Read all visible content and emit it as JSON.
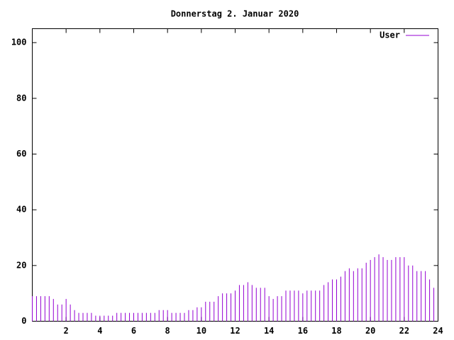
{
  "chart_data": {
    "type": "impulses",
    "title": "Donnerstag 2. Januar 2020",
    "series": [
      {
        "name": "User",
        "color": "#9400d3",
        "x": [
          0,
          0.25,
          0.5,
          0.75,
          1,
          1.25,
          1.5,
          1.75,
          2,
          2.25,
          2.5,
          2.75,
          3,
          3.25,
          3.5,
          3.75,
          4,
          4.25,
          4.5,
          4.75,
          5,
          5.25,
          5.5,
          5.75,
          6,
          6.25,
          6.5,
          6.75,
          7,
          7.25,
          7.5,
          7.75,
          8,
          8.25,
          8.5,
          8.75,
          9,
          9.25,
          9.5,
          9.75,
          10,
          10.25,
          10.5,
          10.75,
          11,
          11.25,
          11.5,
          11.75,
          12,
          12.25,
          12.5,
          12.75,
          13,
          13.25,
          13.5,
          13.75,
          14,
          14.25,
          14.5,
          14.75,
          15,
          15.25,
          15.5,
          15.75,
          16,
          16.25,
          16.5,
          16.75,
          17,
          17.25,
          17.5,
          17.75,
          18,
          18.25,
          18.5,
          18.75,
          19,
          19.25,
          19.5,
          19.75,
          20,
          20.25,
          20.5,
          20.75,
          21,
          21.25,
          21.5,
          21.75,
          22,
          22.25,
          22.5,
          22.75,
          23,
          23.25,
          23.5,
          23.75
        ],
        "values": [
          9,
          9,
          9,
          9,
          9,
          8,
          6,
          6,
          8,
          6,
          4,
          3,
          3,
          3,
          3,
          2,
          2,
          2,
          2,
          2,
          3,
          3,
          3,
          3,
          3,
          3,
          3,
          3,
          3,
          3,
          4,
          4,
          4,
          3,
          3,
          3,
          3,
          4,
          4,
          5,
          5,
          7,
          7,
          7,
          9,
          10,
          10,
          10,
          11,
          13,
          13,
          14,
          13,
          12,
          12,
          12,
          9,
          8,
          9,
          9,
          11,
          11,
          11,
          11,
          10,
          11,
          11,
          11,
          11,
          13,
          14,
          15,
          15,
          16,
          18,
          19,
          18,
          19,
          19,
          21,
          22,
          23,
          24,
          23,
          22,
          22,
          23,
          23,
          23,
          20,
          20,
          18,
          18,
          18,
          15,
          12
        ]
      }
    ],
    "xlim": [
      0,
      24
    ],
    "xticks": [
      2,
      4,
      6,
      8,
      10,
      12,
      14,
      16,
      18,
      20,
      22,
      24
    ],
    "ylim": [
      0,
      105
    ],
    "yticks": [
      0,
      20,
      40,
      60,
      80,
      100
    ]
  }
}
